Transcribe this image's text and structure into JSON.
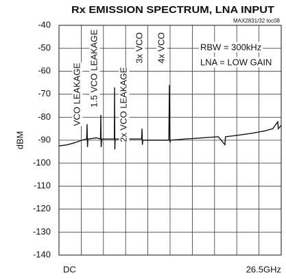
{
  "chart_data": {
    "type": "line",
    "title": "Rx EMISSION SPECTRUM, LNA INPUT",
    "subtitle": "MAX2831/32 toc08",
    "y_label": "dBM",
    "annotations": [
      "VCO LEAKAGE",
      "1.5 VCO LEAKAGE",
      "2x VCO LEAKAGE",
      "3x VCO",
      "4x VCO",
      "RBW = 300kHz",
      "LNA = LOW GAIN"
    ],
    "xlim": [
      0,
      26.5
    ],
    "xticks": [
      {
        "value": 0,
        "label": "DC"
      },
      {
        "value": 26.5,
        "label": "26.5GHz"
      }
    ],
    "xgrid": [
      0,
      2.65,
      5.3,
      7.95,
      10.6,
      13.25,
      15.9,
      18.55,
      21.2,
      23.85,
      26.5
    ],
    "ylim": [
      -140,
      -40
    ],
    "yticks": [
      -140,
      -130,
      -120,
      -110,
      -100,
      -90,
      -80,
      -70,
      -60,
      -50,
      -40
    ],
    "grid": true,
    "series": [
      {
        "color": "#111111",
        "x": [
          0,
          1,
          2,
          2.7,
          3.3,
          3.35,
          3.4,
          3.45,
          4.5,
          4.95,
          4.99,
          5.03,
          5.1,
          6,
          6.6,
          6.63,
          6.66,
          6.7,
          8,
          9.85,
          9.9,
          9.95,
          10,
          11.5,
          13.1,
          13.17,
          13.24,
          13.3,
          15,
          17,
          19,
          19.79,
          19.85,
          21,
          23,
          24.5,
          25.5,
          26.09,
          26.15,
          26.5
        ],
        "values": [
          -92.5,
          -92,
          -91,
          -90,
          -89.5,
          -83,
          -93,
          -89.5,
          -89,
          -89.5,
          -79,
          -93,
          -89.5,
          -89.5,
          -89.5,
          -67,
          -94,
          -89.5,
          -89.5,
          -89.5,
          -85,
          -92,
          -90,
          -90,
          -90,
          -66,
          -91,
          -90,
          -89.5,
          -89,
          -88.5,
          -92,
          -88.5,
          -88,
          -87,
          -86,
          -85,
          -82,
          -85,
          -83.5
        ]
      }
    ]
  }
}
